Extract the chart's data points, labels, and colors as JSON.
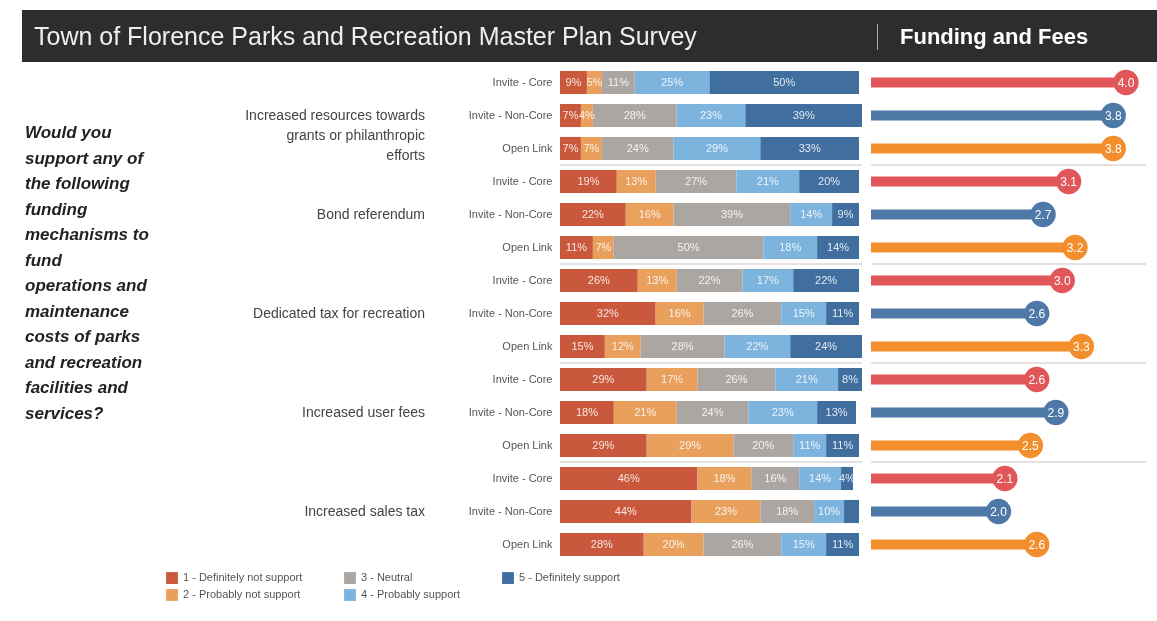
{
  "chart_data": [
    {
      "type": "bar",
      "orientation": "horizontal",
      "stacked": true,
      "grid": "y",
      "title": "Town of Florence Parks and Recreation Master Plan Survey",
      "ylabel": "Would you support any of the following funding mechanisms to fund operations and maintenance costs of parks and recreation facilities and services?",
      "legend": "bottom left",
      "categories": [
        "Invite - Core",
        "Invite - Non-Core",
        "Open Link",
        "Invite - Core",
        "Invite - Non-Core",
        "Open Link",
        "Invite - Core",
        "Invite - Non-Core",
        "Open Link",
        "Invite - Core",
        "Invite - Non-Core",
        "Open Link",
        "Invite - Core",
        "Invite - Non-Core",
        "Open Link"
      ],
      "annotations": [
        "Increased resources towards grants or philanthropic efforts",
        "Bond referendum",
        "Dedicated tax for recreation",
        "Increased user fees",
        "Increased sales tax"
      ],
      "series": [
        {
          "name": "1 - Definitely not support",
          "color": "#c9583c",
          "values": [
            9,
            7,
            7,
            19,
            22,
            11,
            26,
            32,
            15,
            29,
            18,
            29,
            46,
            44,
            28
          ],
          "value_labels": [
            "9%",
            "7%",
            "7%",
            "19%",
            "22%",
            "11%",
            "26%",
            "32%",
            "15%",
            "29%",
            "18%",
            "29%",
            "46%",
            "44%",
            "28%"
          ]
        },
        {
          "name": "2 - Probably not support",
          "color": "#e9a05c",
          "values": [
            5,
            4,
            7,
            13,
            16,
            7,
            13,
            16,
            12,
            17,
            21,
            29,
            18,
            23,
            20
          ],
          "value_labels": [
            "5%",
            "4%",
            "7%",
            "13%",
            "16%",
            "7%",
            "13%",
            "16%",
            "12%",
            "17%",
            "21%",
            "29%",
            "18%",
            "23%",
            "20%"
          ]
        },
        {
          "name": "3 - Neutral",
          "color": "#aca6a2",
          "values": [
            11,
            28,
            24,
            27,
            39,
            50,
            22,
            26,
            28,
            26,
            24,
            20,
            16,
            18,
            26
          ],
          "value_labels": [
            "11%",
            "28%",
            "24%",
            "27%",
            "39%",
            "50%",
            "22%",
            "26%",
            "28%",
            "26%",
            "24%",
            "20%",
            "16%",
            "18%",
            "26%"
          ]
        },
        {
          "name": "4 - Probably support",
          "color": "#7db4de",
          "values": [
            25,
            23,
            29,
            21,
            14,
            18,
            17,
            15,
            22,
            21,
            23,
            11,
            14,
            10,
            15
          ],
          "value_labels": [
            "25%",
            "23%",
            "29%",
            "21%",
            "14%",
            "18%",
            "17%",
            "15%",
            "22%",
            "21%",
            "23%",
            "11%",
            "14%",
            "10%",
            "15%"
          ]
        },
        {
          "name": "5 - Definitely support",
          "color": "#3f6e9f",
          "values": [
            50,
            39,
            33,
            20,
            9,
            14,
            22,
            11,
            24,
            8,
            13,
            11,
            4,
            5,
            11
          ],
          "value_labels": [
            "50%",
            "39%",
            "33%",
            "20%",
            "9%",
            "14%",
            "22%",
            "11%",
            "24%",
            "8%",
            "13%",
            "11%",
            "4%",
            null,
            "11%"
          ]
        }
      ]
    },
    {
      "type": "lollipop",
      "orientation": "horizontal",
      "title": "Funding and Fees",
      "grid": "y",
      "values": [
        4.0,
        3.8,
        3.8,
        3.1,
        2.7,
        3.2,
        3.0,
        2.6,
        3.3,
        2.6,
        2.9,
        2.5,
        2.1,
        2.0,
        2.6
      ],
      "value_labels": [
        "4.0",
        "3.8",
        "3.8",
        "3.1",
        "2.7",
        "3.2",
        "3.0",
        "2.6",
        "3.3",
        "2.6",
        "2.9",
        "2.5",
        "2.1",
        "2.0",
        "2.6"
      ],
      "colors": [
        "#e15759",
        "#4e79a7",
        "#f28e2b",
        "#e15759",
        "#4e79a7",
        "#f28e2b",
        "#e15759",
        "#4e79a7",
        "#f28e2b",
        "#e15759",
        "#4e79a7",
        "#f28e2b",
        "#e15759",
        "#4e79a7",
        "#f28e2b"
      ]
    }
  ]
}
